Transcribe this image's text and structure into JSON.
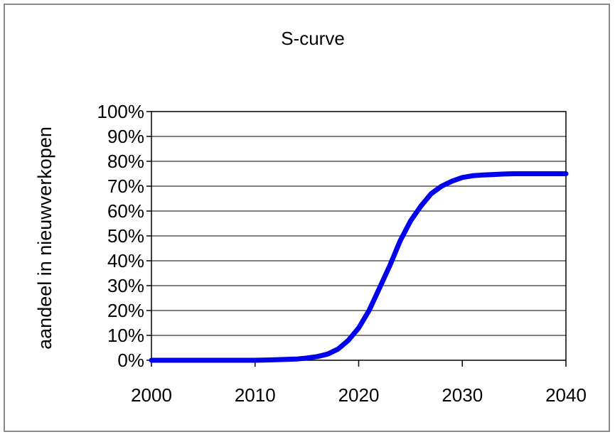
{
  "chart_data": {
    "type": "line",
    "title": "S-curve",
    "xlabel": "",
    "ylabel": "aandeel in nieuwverkopen",
    "xlim": [
      2000,
      2040
    ],
    "ylim": [
      0,
      1
    ],
    "x_ticks": [
      "2000",
      "2010",
      "2020",
      "2030",
      "2040"
    ],
    "y_ticks": [
      "0%",
      "10%",
      "20%",
      "30%",
      "40%",
      "50%",
      "60%",
      "70%",
      "80%",
      "90%",
      "100%"
    ],
    "grid": true,
    "legend": "none",
    "line_color": "#0000ee",
    "series": [
      {
        "x": [
          2000,
          2005,
          2010,
          2012,
          2014,
          2015,
          2016,
          2017,
          2018,
          2019,
          2020,
          2021,
          2022,
          2023,
          2024,
          2025,
          2026,
          2027,
          2028,
          2029,
          2030,
          2031,
          2032,
          2033,
          2034,
          2035,
          2040
        ],
        "y": [
          0.0,
          0.0,
          0.0,
          0.002,
          0.005,
          0.009,
          0.015,
          0.025,
          0.045,
          0.08,
          0.13,
          0.2,
          0.29,
          0.38,
          0.48,
          0.56,
          0.62,
          0.67,
          0.7,
          0.72,
          0.735,
          0.742,
          0.745,
          0.747,
          0.749,
          0.75,
          0.75
        ]
      }
    ]
  }
}
